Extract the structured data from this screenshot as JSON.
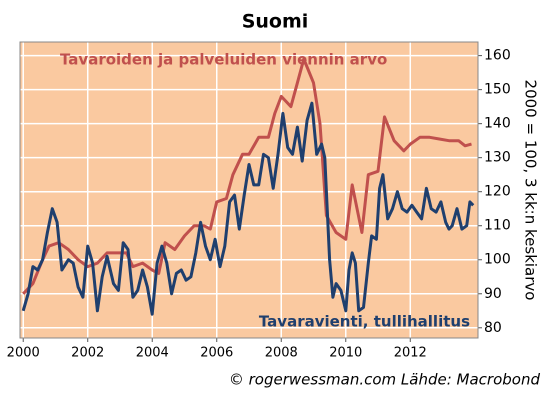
{
  "chart_data": {
    "type": "line",
    "title": "Suomi",
    "y_label": "2000 = 100, 3 kk:n keskiarvo",
    "source": "© rogerwessman.com Lähde: Macrobond",
    "xlim": [
      1999.9,
      2014.1
    ],
    "ylim": [
      77,
      164
    ],
    "xticks": [
      2000,
      2002,
      2004,
      2006,
      2008,
      2010,
      2012
    ],
    "yticks": [
      80,
      90,
      100,
      110,
      120,
      130,
      140,
      150,
      160
    ],
    "grid": true,
    "y_axis_side": "right",
    "background": "#fac9a0",
    "series": [
      {
        "name": "Tavaroiden ja palveluiden viennin arvo",
        "color": "#c0504d",
        "legend": "top-left",
        "x": [
          2000.0,
          2000.3,
          2000.6,
          2000.8,
          2001.1,
          2001.4,
          2001.7,
          2002.0,
          2002.3,
          2002.6,
          2002.9,
          2003.2,
          2003.4,
          2003.7,
          2004.0,
          2004.2,
          2004.4,
          2004.7,
          2005.0,
          2005.3,
          2005.6,
          2005.8,
          2006.0,
          2006.3,
          2006.5,
          2006.8,
          2007.0,
          2007.3,
          2007.6,
          2007.8,
          2008.0,
          2008.3,
          2008.5,
          2008.7,
          2009.0,
          2009.2,
          2009.4,
          2009.7,
          2010.0,
          2010.2,
          2010.5,
          2010.7,
          2011.0,
          2011.2,
          2011.5,
          2011.8,
          2012.0,
          2012.3,
          2012.6,
          2012.9,
          2013.2,
          2013.5,
          2013.7,
          2013.9
        ],
        "values": [
          90,
          93,
          100,
          104,
          105,
          103,
          100,
          98,
          99,
          102,
          102,
          102,
          98,
          99,
          97,
          96,
          105,
          103,
          107,
          110,
          110,
          109,
          117,
          118,
          125,
          131,
          131,
          136,
          136,
          143,
          148,
          145,
          152,
          159,
          152,
          140,
          113,
          108,
          106,
          122,
          108,
          125,
          126,
          142,
          135,
          132,
          134,
          136,
          136,
          135.5,
          135,
          135,
          133.5,
          134
        ]
      },
      {
        "name": "Tavaravienti, tullihallitus",
        "color": "#1f3f6e",
        "legend": "bottom-right",
        "x": [
          2000.0,
          2000.15,
          2000.3,
          2000.45,
          2000.6,
          2000.75,
          2000.9,
          2001.05,
          2001.2,
          2001.4,
          2001.55,
          2001.7,
          2001.85,
          2002.0,
          2002.15,
          2002.3,
          2002.45,
          2002.6,
          2002.8,
          2002.95,
          2003.1,
          2003.25,
          2003.4,
          2003.55,
          2003.7,
          2003.85,
          2004.0,
          2004.15,
          2004.3,
          2004.45,
          2004.6,
          2004.75,
          2004.9,
          2005.05,
          2005.2,
          2005.35,
          2005.5,
          2005.65,
          2005.8,
          2005.95,
          2006.1,
          2006.25,
          2006.4,
          2006.55,
          2006.7,
          2006.85,
          2007.0,
          2007.15,
          2007.3,
          2007.45,
          2007.6,
          2007.75,
          2007.9,
          2008.05,
          2008.2,
          2008.35,
          2008.5,
          2008.65,
          2008.8,
          2008.95,
          2009.1,
          2009.25,
          2009.35,
          2009.5,
          2009.6,
          2009.7,
          2009.85,
          2010.0,
          2010.1,
          2010.2,
          2010.3,
          2010.4,
          2010.55,
          2010.7,
          2010.8,
          2010.95,
          2011.05,
          2011.15,
          2011.3,
          2011.45,
          2011.6,
          2011.75,
          2011.9,
          2012.05,
          2012.2,
          2012.35,
          2012.5,
          2012.65,
          2012.8,
          2012.95,
          2013.1,
          2013.2,
          2013.3,
          2013.45,
          2013.6,
          2013.75,
          2013.85,
          2013.95
        ],
        "values": [
          85,
          90,
          98,
          97,
          100,
          108,
          115,
          111,
          97,
          100,
          99,
          92,
          89,
          104,
          99,
          85,
          95,
          101,
          93,
          91,
          105,
          103,
          89,
          91,
          97,
          92,
          84,
          99,
          104,
          99,
          90,
          96,
          97,
          94,
          95,
          102,
          111,
          104,
          100,
          106,
          98,
          104,
          117,
          119,
          109,
          119,
          128,
          122,
          122,
          131,
          130,
          121,
          131,
          143,
          133,
          131,
          139,
          129,
          141,
          146,
          131,
          134,
          130,
          100,
          89,
          93,
          91,
          85,
          97,
          102,
          99,
          85,
          86,
          99,
          107,
          106,
          121,
          125,
          112,
          115,
          120,
          115,
          114,
          116,
          114,
          112,
          121,
          115,
          114,
          117,
          111,
          109,
          110,
          115,
          109,
          110,
          117,
          116
        ]
      }
    ]
  }
}
